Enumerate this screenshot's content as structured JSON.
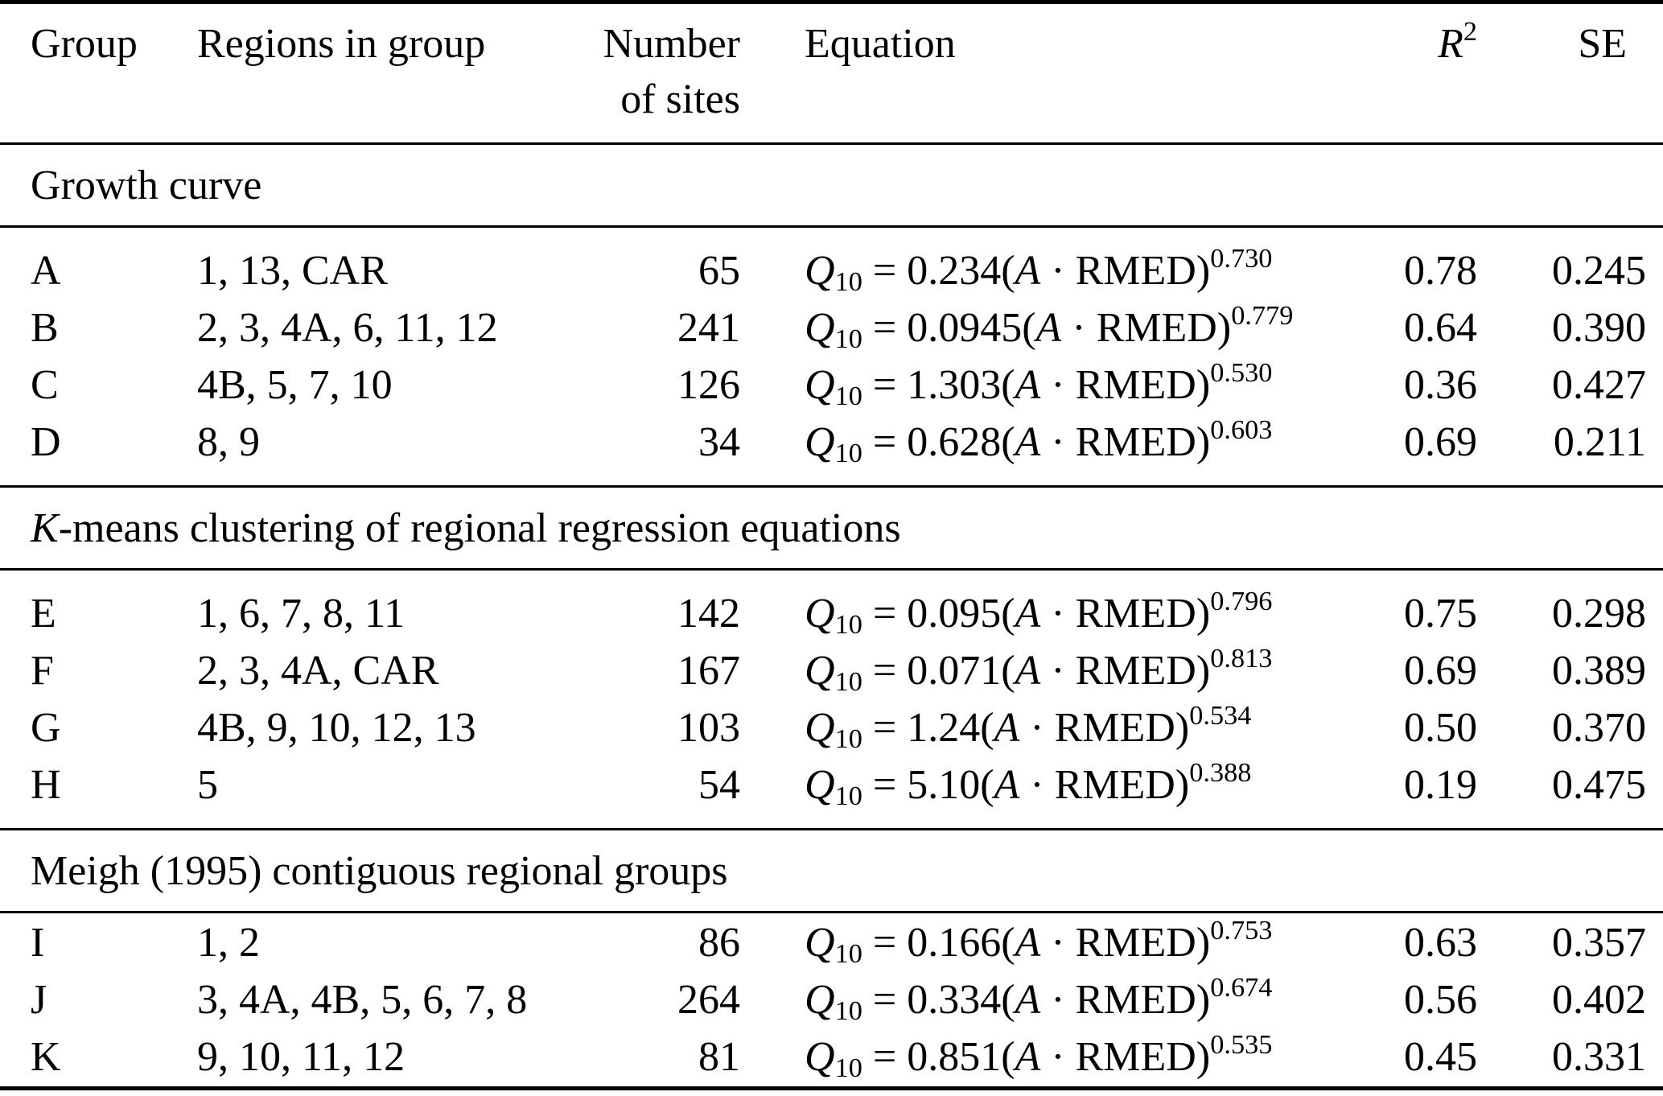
{
  "page": {
    "background": "#ffffff",
    "text_color": "#000000"
  },
  "table": {
    "header": {
      "group": "Group",
      "regions": "Regions in group",
      "sites_line1": "Number",
      "sites_line2": "of sites",
      "equation": "Equation",
      "r2_base": "R",
      "r2_sup": "2",
      "se": "SE"
    },
    "equation_format": {
      "lhs": "Q",
      "lhs_sub": "10",
      "equals": " = ",
      "open_paren": "(",
      "area_var": "A",
      "dot": " · ",
      "rmed": "RMED",
      "close_paren": ")"
    },
    "sections": [
      {
        "title_parts": [
          {
            "text": "Growth curve",
            "italic": false
          }
        ],
        "rows": [
          {
            "group": "A",
            "regions": "1, 13, CAR",
            "sites": "65",
            "coefficient": "0.234",
            "exponent": "0.730",
            "r2": "0.78",
            "se": "0.245"
          },
          {
            "group": "B",
            "regions": "2, 3, 4A, 6, 11, 12",
            "sites": "241",
            "coefficient": "0.0945",
            "exponent": "0.779",
            "r2": "0.64",
            "se": "0.390"
          },
          {
            "group": "C",
            "regions": "4B, 5, 7, 10",
            "sites": "126",
            "coefficient": "1.303",
            "exponent": "0.530",
            "r2": "0.36",
            "se": "0.427"
          },
          {
            "group": "D",
            "regions": "8, 9",
            "sites": "34",
            "coefficient": "0.628",
            "exponent": "0.603",
            "r2": "0.69",
            "se": "0.211"
          }
        ]
      },
      {
        "title_parts": [
          {
            "text": "K",
            "italic": true
          },
          {
            "text": "-means clustering of regional regression equations",
            "italic": false
          }
        ],
        "rows": [
          {
            "group": "E",
            "regions": "1, 6, 7, 8, 11",
            "sites": "142",
            "coefficient": "0.095",
            "exponent": "0.796",
            "r2": "0.75",
            "se": "0.298"
          },
          {
            "group": "F",
            "regions": "2, 3, 4A, CAR",
            "sites": "167",
            "coefficient": "0.071",
            "exponent": "0.813",
            "r2": "0.69",
            "se": "0.389"
          },
          {
            "group": "G",
            "regions": "4B, 9, 10, 12, 13",
            "sites": "103",
            "coefficient": "1.24",
            "exponent": "0.534",
            "r2": "0.50",
            "se": "0.370"
          },
          {
            "group": "H",
            "regions": "5",
            "sites": "54",
            "coefficient": "5.10",
            "exponent": "0.388",
            "r2": "0.19",
            "se": "0.475"
          }
        ]
      },
      {
        "title_parts": [
          {
            "text": "Meigh (1995) contiguous regional groups",
            "italic": false
          }
        ],
        "rows": [
          {
            "group": "I",
            "regions": "1, 2",
            "sites": "86",
            "coefficient": "0.166",
            "exponent": "0.753",
            "r2": "0.63",
            "se": "0.357"
          },
          {
            "group": "J",
            "regions": "3, 4A, 4B, 5, 6, 7, 8",
            "sites": "264",
            "coefficient": "0.334",
            "exponent": "0.674",
            "r2": "0.56",
            "se": "0.402"
          },
          {
            "group": "K",
            "regions": "9, 10, 11, 12",
            "sites": "81",
            "coefficient": "0.851",
            "exponent": "0.535",
            "r2": "0.45",
            "se": "0.331"
          }
        ]
      }
    ]
  }
}
